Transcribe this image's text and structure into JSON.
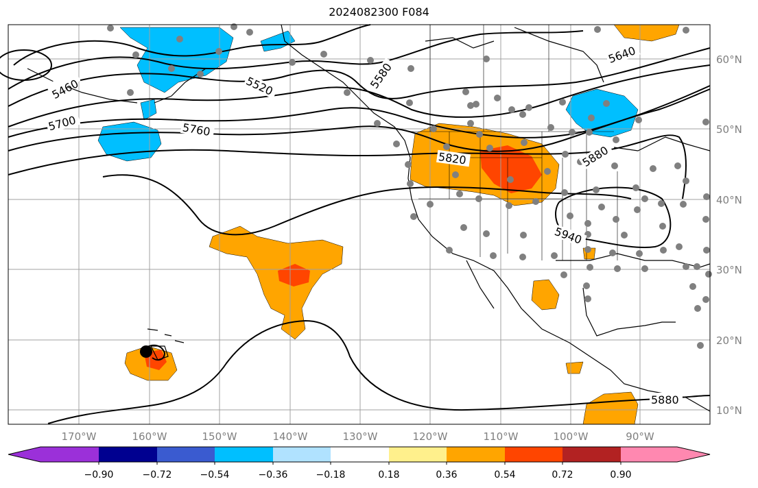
{
  "title": "2024082300 F084",
  "map": {
    "lon_labels": [
      "170°W",
      "160°W",
      "150°W",
      "140°W",
      "130°W",
      "120°W",
      "110°W",
      "100°W",
      "90°W"
    ],
    "lat_labels": [
      "60°N",
      "50°N",
      "40°N",
      "30°N",
      "20°N",
      "10°N"
    ],
    "contour_labels": [
      "5460",
      "5520",
      "5580",
      "5640",
      "5700",
      "5760",
      "5820",
      "5880",
      "5940",
      "5880"
    ]
  },
  "colorbar": {
    "ticks": [
      "−0.90",
      "−0.72",
      "−0.54",
      "−0.36",
      "−0.18",
      "0.18",
      "0.36",
      "0.54",
      "0.72",
      "0.90"
    ],
    "colors": [
      "#9b30d9",
      "#000090",
      "#3a5bd0",
      "#00bfff",
      "#b0e2ff",
      "#ffffff",
      "#fff08c",
      "#ffa500",
      "#ff4500",
      "#b22222",
      "#ff88b0"
    ]
  }
}
